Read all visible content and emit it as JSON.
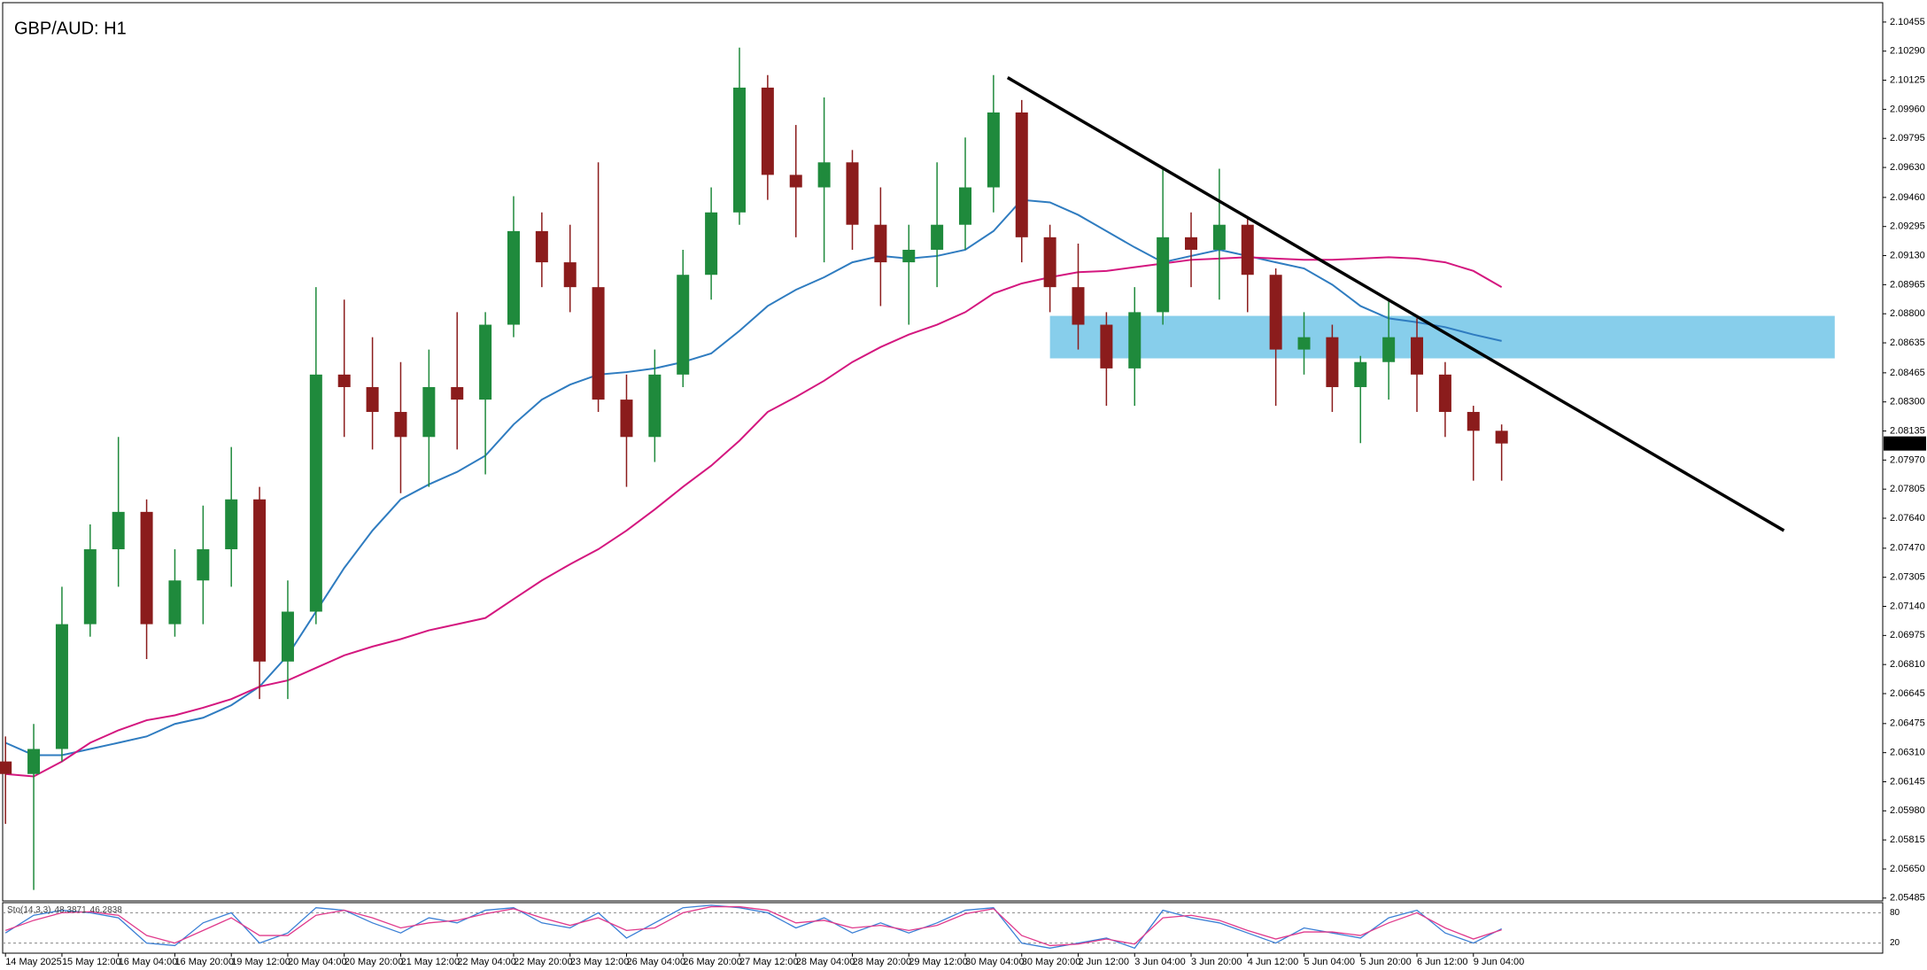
{
  "chart_data": {
    "type": "candlestick",
    "title": "GBP/AUD: H1",
    "up_color": "#1f8a3c",
    "down_color": "#8b1c1c",
    "xlim": [
      -0.1,
      66.5
    ],
    "xticks": [
      {
        "value": 0,
        "label": "14 May 2025"
      },
      {
        "value": 2,
        "label": "15 May 12:00"
      },
      {
        "value": 4,
        "label": "16 May 04:00"
      },
      {
        "value": 6,
        "label": "16 May 20:00"
      },
      {
        "value": 8,
        "label": "19 May 12:00"
      },
      {
        "value": 10,
        "label": "20 May 04:00"
      },
      {
        "value": 12,
        "label": "20 May 20:00"
      },
      {
        "value": 14,
        "label": "21 May 12:00"
      },
      {
        "value": 16,
        "label": "22 May 04:00"
      },
      {
        "value": 18,
        "label": "22 May 20:00"
      },
      {
        "value": 20,
        "label": "23 May 12:00"
      },
      {
        "value": 22,
        "label": "26 May 04:00"
      },
      {
        "value": 24,
        "label": "26 May 20:00"
      },
      {
        "value": 26,
        "label": "27 May 12:00"
      },
      {
        "value": 28,
        "label": "28 May 04:00"
      },
      {
        "value": 30,
        "label": "28 May 20:00"
      },
      {
        "value": 32,
        "label": "29 May 12:00"
      },
      {
        "value": 34,
        "label": "30 May 04:00"
      },
      {
        "value": 36,
        "label": "30 May 20:00"
      },
      {
        "value": 38,
        "label": "2 Jun 12:00"
      },
      {
        "value": 40,
        "label": "3 Jun 04:00"
      },
      {
        "value": 42,
        "label": "3 Jun 20:00"
      },
      {
        "value": 44,
        "label": "4 Jun 12:00"
      },
      {
        "value": 46,
        "label": "5 Jun 04:00"
      },
      {
        "value": 48,
        "label": "5 Jun 20:00"
      },
      {
        "value": 50,
        "label": "6 Jun 12:00"
      },
      {
        "value": 52,
        "label": "9 Jun 04:00"
      }
    ],
    "ylim": [
      2.05469,
      2.10565
    ],
    "yticks": [
      2.10455,
      {
        "value": 2.1029,
        "label": "2.10290"
      },
      2.10125,
      {
        "value": 2.0996,
        "label": "2.09960"
      },
      2.09795,
      {
        "value": 2.0963,
        "label": "2.09630"
      },
      {
        "value": 2.0946,
        "label": "2.09460"
      },
      2.09295,
      {
        "value": 2.0913,
        "label": "2.09130"
      },
      2.08965,
      {
        "value": 2.088,
        "label": "2.08800"
      },
      2.08635,
      2.08465,
      {
        "value": 2.083,
        "label": "2.08300"
      },
      2.08135,
      {
        "value": 2.0797,
        "label": "2.07970"
      },
      2.07805,
      {
        "value": 2.0764,
        "label": "2.07640"
      },
      {
        "value": 2.0747,
        "label": "2.07470"
      },
      2.07305,
      {
        "value": 2.0714,
        "label": "2.07140"
      },
      2.06975,
      {
        "value": 2.0681,
        "label": "2.06810"
      },
      2.06645,
      2.06475,
      {
        "value": 2.0631,
        "label": "2.06310"
      },
      2.06145,
      {
        "value": 2.0598,
        "label": "2.05980"
      },
      2.05815,
      {
        "value": 2.0565,
        "label": "2.05650"
      },
      2.05485
    ],
    "open": [
      2.0626,
      2.06189,
      2.06331,
      2.07039,
      2.07464,
      2.07676,
      2.07039,
      2.07287,
      2.07464,
      2.07747,
      2.06827,
      2.0711,
      2.08455,
      2.08384,
      2.08243,
      2.08101,
      2.08384,
      2.08313,
      2.08738,
      2.09269,
      2.09092,
      2.08951,
      2.08313,
      2.08101,
      2.08455,
      2.09021,
      2.09375,
      2.10083,
      2.09588,
      2.09517,
      2.09659,
      2.09305,
      2.09092,
      2.09163,
      2.09305,
      2.09517,
      2.09942,
      2.09234,
      2.08951,
      2.08738,
      2.0849,
      2.08809,
      2.09234,
      2.09163,
      2.09305,
      2.09021,
      2.08597,
      2.08667,
      2.08384,
      2.08526,
      2.08667,
      2.08455,
      2.08243,
      2.08136
    ],
    "high": [
      2.06402,
      2.06473,
      2.07251,
      2.07605,
      2.08101,
      2.07747,
      2.07464,
      2.07712,
      2.08044,
      2.07818,
      2.07287,
      2.08951,
      2.0888,
      2.08667,
      2.08526,
      2.08597,
      2.08809,
      2.08809,
      2.09467,
      2.09375,
      2.09305,
      2.09659,
      2.08455,
      2.08597,
      2.09163,
      2.09517,
      2.1031,
      2.10154,
      2.09871,
      2.10027,
      2.09729,
      2.09517,
      2.09305,
      2.09659,
      2.098,
      2.10154,
      2.10013,
      2.09305,
      2.09198,
      2.08809,
      2.08951,
      2.09623,
      2.09375,
      2.09623,
      2.0934,
      2.09057,
      2.08809,
      2.08738,
      2.08561,
      2.0888,
      2.08774,
      2.08526,
      2.08278,
      2.08172
    ],
    "low": [
      2.05906,
      2.05531,
      2.0626,
      2.06968,
      2.07251,
      2.06841,
      2.06968,
      2.07039,
      2.07251,
      2.06614,
      2.06614,
      2.07039,
      2.08101,
      2.0803,
      2.07782,
      2.07818,
      2.0803,
      2.07889,
      2.08667,
      2.08951,
      2.08809,
      2.08243,
      2.07818,
      2.07959,
      2.08384,
      2.0888,
      2.09305,
      2.09446,
      2.09234,
      2.09092,
      2.09163,
      2.08844,
      2.08738,
      2.08951,
      2.09163,
      2.09375,
      2.09092,
      2.08809,
      2.08597,
      2.08278,
      2.08278,
      2.08738,
      2.08951,
      2.0888,
      2.08809,
      2.08278,
      2.08455,
      2.08243,
      2.08066,
      2.08313,
      2.08243,
      2.08101,
      2.07853,
      2.07853
    ],
    "close": [
      2.06189,
      2.06331,
      2.07039,
      2.07464,
      2.07676,
      2.07039,
      2.07287,
      2.07464,
      2.07747,
      2.06827,
      2.0711,
      2.08455,
      2.08384,
      2.08243,
      2.08101,
      2.08384,
      2.08313,
      2.08738,
      2.09269,
      2.09092,
      2.08951,
      2.08313,
      2.08101,
      2.08455,
      2.09021,
      2.09375,
      2.10083,
      2.09588,
      2.09517,
      2.09659,
      2.09305,
      2.09092,
      2.09163,
      2.09305,
      2.09517,
      2.09942,
      2.09234,
      2.08951,
      2.08738,
      2.0849,
      2.08809,
      2.09234,
      2.09163,
      2.09305,
      2.09021,
      2.08597,
      2.08667,
      2.08384,
      2.08526,
      2.08667,
      2.08455,
      2.08243,
      2.08136,
      2.08064
    ],
    "overlays": [
      {
        "color": "#2f7cc0",
        "values": [
          2.06366,
          2.06296,
          2.06296,
          2.06331,
          2.06366,
          2.06402,
          2.06473,
          2.06508,
          2.06579,
          2.06685,
          2.06862,
          2.0711,
          2.07358,
          2.0757,
          2.07747,
          2.07832,
          2.07903,
          2.07995,
          2.08172,
          2.08313,
          2.08398,
          2.08455,
          2.08469,
          2.0849,
          2.08526,
          2.08575,
          2.08703,
          2.08844,
          2.08936,
          2.09007,
          2.09092,
          2.09128,
          2.09113,
          2.09128,
          2.09163,
          2.09269,
          2.09446,
          2.09432,
          2.09361,
          2.09269,
          2.09177,
          2.09092,
          2.09128,
          2.09163,
          2.09128,
          2.09092,
          2.09057,
          2.08965,
          2.08844,
          2.08774,
          2.08752,
          2.08724,
          2.08682,
          2.08646
        ]
      },
      {
        "color": "#d4177f",
        "values": [
          2.06189,
          2.06175,
          2.0626,
          2.06366,
          2.06437,
          2.06494,
          2.06522,
          2.06565,
          2.06614,
          2.06685,
          2.0672,
          2.06791,
          2.06862,
          2.06912,
          2.06954,
          2.07004,
          2.07039,
          2.07074,
          2.07181,
          2.07287,
          2.07379,
          2.07464,
          2.0757,
          2.0769,
          2.07818,
          2.07938,
          2.0808,
          2.08243,
          2.08328,
          2.0842,
          2.08526,
          2.08611,
          2.08682,
          2.08738,
          2.08809,
          2.08915,
          2.08972,
          2.09007,
          2.09036,
          2.09043,
          2.09064,
          2.09085,
          2.09106,
          2.09113,
          2.09121,
          2.09113,
          2.09106,
          2.09106,
          2.09113,
          2.09121,
          2.09113,
          2.09092,
          2.09043,
          2.08951
        ]
      }
    ],
    "trendline": {
      "color": "#000000",
      "x": [
        35.5,
        63
      ],
      "y": [
        2.1014,
        2.0757
      ]
    },
    "zone": {
      "color": "#87ceeb",
      "x": [
        37,
        64.8
      ],
      "y": [
        2.08547,
        2.08788
      ]
    },
    "indicator": {
      "name": "Sto(14,3,3)",
      "ylim": [
        0,
        100
      ],
      "yticks": [
        80,
        20
      ],
      "series": [
        {
          "color": "#3a7fd5",
          "values": [
            40,
            75,
            85,
            80,
            70,
            20,
            15,
            60,
            80,
            20,
            40,
            90,
            85,
            60,
            40,
            70,
            60,
            85,
            90,
            60,
            50,
            80,
            30,
            60,
            90,
            95,
            90,
            80,
            50,
            70,
            40,
            60,
            40,
            60,
            85,
            90,
            20,
            10,
            20,
            30,
            10,
            85,
            70,
            60,
            40,
            20,
            50,
            40,
            30,
            70,
            85,
            40,
            20,
            48.3871
          ]
        },
        {
          "color": "#e03a8c",
          "values": [
            45,
            65,
            80,
            82,
            75,
            35,
            20,
            45,
            70,
            35,
            35,
            75,
            85,
            70,
            50,
            60,
            65,
            78,
            88,
            70,
            55,
            70,
            45,
            50,
            80,
            92,
            92,
            85,
            60,
            65,
            50,
            55,
            45,
            55,
            78,
            88,
            35,
            15,
            18,
            28,
            18,
            70,
            75,
            65,
            45,
            28,
            42,
            42,
            35,
            60,
            80,
            50,
            28,
            46.2838
          ]
        }
      ]
    }
  }
}
